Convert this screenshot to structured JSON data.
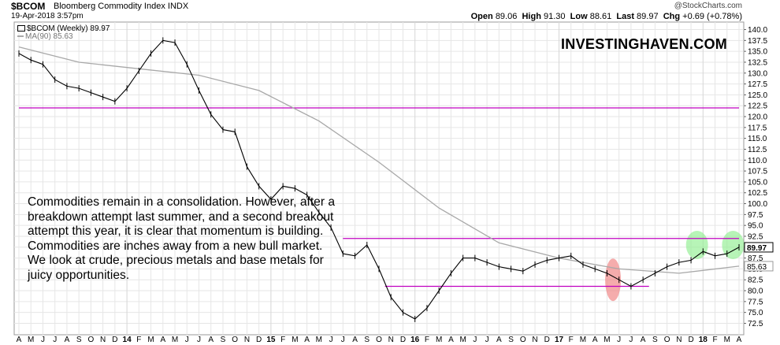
{
  "header": {
    "symbol": "$BCOM",
    "name": "Bloomberg Commodity Index INDX",
    "datetime": "19-Apr-2018 3:57pm",
    "credit": "@StockCharts.com",
    "open_label": "Open",
    "open": "89.06",
    "high_label": "High",
    "high": "91.30",
    "low_label": "Low",
    "low": "88.61",
    "last_label": "Last",
    "last": "89.97",
    "chg_label": "Chg",
    "chg": "+0.69 (+0.78%)"
  },
  "legend": {
    "price": "$BCOM (Weekly) 89.97",
    "ma": "MA(90) 85.63"
  },
  "watermark": "INVESTINGHAVEN.COM",
  "commentary": "Commodities remain in a consolidation. However, after a breakdown attempt last summer, and a second breakout attempt this year, it is clear that momentum is building. Commodities are inches away from a new bull market. We look at crude, precious metals and base metals for juicy opportunities.",
  "colors": {
    "price": "#000000",
    "ma": "#a8a8a8",
    "resistance": "#c000c0",
    "red_highlight": "#f08080",
    "green_highlight": "#90ee90",
    "grid": "#e6e6e6"
  },
  "chart_data": {
    "type": "line",
    "title": "$BCOM Bloomberg Commodity Index INDX",
    "ylim": [
      71.5,
      141
    ],
    "y_ticks": [
      72.5,
      75.0,
      77.5,
      80.0,
      82.5,
      85.0,
      87.5,
      90.0,
      92.5,
      95.0,
      97.5,
      100.0,
      102.5,
      105.0,
      107.5,
      110.0,
      112.5,
      115.0,
      117.5,
      120.0,
      122.5,
      125.0,
      127.5,
      130.0,
      132.5,
      135.0,
      137.5,
      140.0
    ],
    "y_badges": [
      "89.97",
      "85.63"
    ],
    "x_ticks": [
      "A",
      "M",
      "J",
      "J",
      "A",
      "S",
      "O",
      "N",
      "D",
      "14",
      "F",
      "M",
      "A",
      "M",
      "J",
      "J",
      "A",
      "S",
      "O",
      "N",
      "D",
      "15",
      "F",
      "M",
      "A",
      "M",
      "J",
      "J",
      "A",
      "S",
      "O",
      "N",
      "D",
      "16",
      "F",
      "M",
      "A",
      "M",
      "J",
      "J",
      "A",
      "S",
      "O",
      "N",
      "D",
      "17",
      "F",
      "M",
      "A",
      "M",
      "J",
      "J",
      "A",
      "S",
      "O",
      "N",
      "D",
      "18",
      "F",
      "M",
      "A"
    ],
    "year_ticks": [
      "14",
      "15",
      "16",
      "17",
      "18"
    ],
    "series": [
      {
        "name": "$BCOM (Weekly)",
        "x": [
          0,
          1,
          2,
          3,
          4,
          5,
          6,
          7,
          8,
          9,
          10,
          11,
          12,
          13,
          14,
          15,
          16,
          17,
          18,
          19,
          20,
          21,
          22,
          23,
          24,
          25,
          26,
          27,
          28,
          29,
          30,
          31,
          32,
          33,
          34,
          35,
          36,
          37,
          38,
          39,
          40,
          41,
          42,
          43,
          44,
          45,
          46,
          47,
          48,
          49,
          50,
          51,
          52,
          53,
          54,
          55,
          56,
          57,
          58,
          59,
          60
        ],
        "values": [
          134.5,
          133.0,
          132.0,
          128.5,
          127.0,
          126.5,
          125.5,
          124.5,
          123.5,
          126.5,
          130.5,
          134.5,
          137.5,
          137.0,
          132.0,
          126.0,
          120.5,
          117.0,
          116.5,
          108.5,
          104.0,
          101.0,
          104.0,
          103.5,
          102.0,
          98.0,
          94.5,
          88.5,
          88.0,
          90.5,
          85.0,
          78.5,
          75.0,
          73.5,
          76.0,
          80.0,
          84.0,
          87.5,
          87.5,
          86.5,
          85.5,
          85.0,
          84.5,
          86.0,
          87.0,
          87.5,
          88.0,
          86.0,
          85.0,
          84.0,
          82.5,
          81.0,
          82.5,
          84.0,
          85.5,
          86.5,
          87.0,
          89.0,
          88.0,
          88.5,
          89.97
        ]
      },
      {
        "name": "MA(90)",
        "x": [
          0,
          5,
          10,
          15,
          20,
          25,
          30,
          35,
          40,
          45,
          50,
          55,
          60
        ],
        "values": [
          136.0,
          132.5,
          131.0,
          129.5,
          126.0,
          119.0,
          109.5,
          99.0,
          91.0,
          87.5,
          85.0,
          84.0,
          85.63
        ]
      }
    ],
    "annotations": [
      {
        "type": "hline",
        "y": 122.0,
        "x_from": 0,
        "x_to": 60
      },
      {
        "type": "hline",
        "y": 92.0,
        "x_from": 27,
        "x_to": 60
      },
      {
        "type": "hline",
        "y": 81.0,
        "x_from": 30.5,
        "x_to": 52.5
      },
      {
        "type": "ellipse",
        "color": "red",
        "x": 49.5,
        "y": 82.5
      },
      {
        "type": "ellipse",
        "color": "green",
        "x": 56.5,
        "y": 90.5
      },
      {
        "type": "ellipse",
        "color": "green",
        "x": 59.5,
        "y": 90.5
      }
    ]
  }
}
